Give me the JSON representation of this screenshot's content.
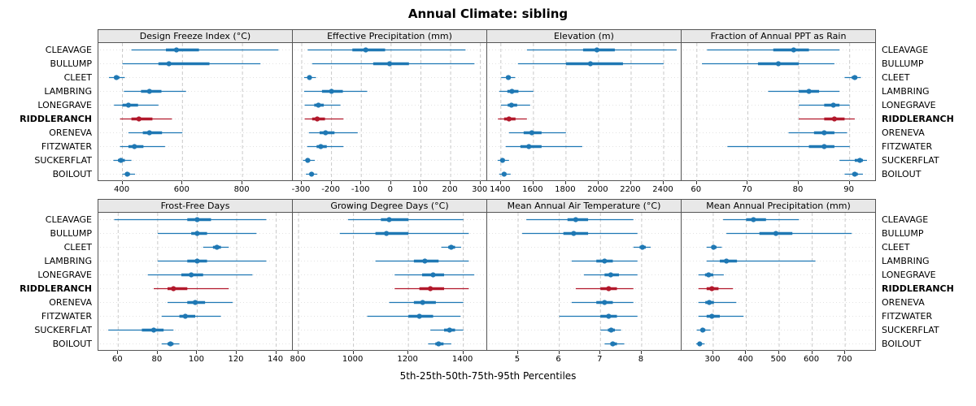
{
  "title": "Annual Climate: sibling",
  "caption": "5th-25th-50th-75th-95th Percentiles",
  "highlight_site": "RIDDLERANCH",
  "sites": [
    "CLEAVAGE",
    "BULLUMP",
    "CLEET",
    "LAMBRING",
    "LONEGRAVE",
    "RIDDLERANCH",
    "ORENEVA",
    "FITZWATER",
    "SUCKERFLAT",
    "BOILOUT"
  ],
  "colors": {
    "series": "#1f78b4",
    "highlight": "#b2182b",
    "header_bg": "#e8e8e8",
    "border": "#555555",
    "grid_v": "#c9c9c9",
    "grid_h": "#e3e3e3"
  },
  "chart_data": {
    "type": "scatter",
    "subtype": "percentile-dotplot",
    "percentiles": [
      5,
      25,
      50,
      75,
      95
    ],
    "rows_top_to_bottom": [
      "CLEAVAGE",
      "BULLUMP",
      "CLEET",
      "LAMBRING",
      "LONEGRAVE",
      "RIDDLERANCH",
      "ORENEVA",
      "FITZWATER",
      "SUCKERFLAT",
      "BOILOUT"
    ],
    "legend_position": "none",
    "grid": "dashed-vertical-at-ticks",
    "panels": [
      {
        "title": "Design Freeze Index (°C)",
        "ticks": [
          400,
          600,
          800
        ],
        "xlim": [
          320,
          965
        ],
        "values": {
          "CLEAVAGE": [
            430,
            545,
            580,
            655,
            920
          ],
          "BULLUMP": [
            400,
            520,
            555,
            690,
            860
          ],
          "CLEET": [
            355,
            372,
            380,
            390,
            408
          ],
          "LAMBRING": [
            405,
            462,
            490,
            530,
            612
          ],
          "LONEGRAVE": [
            372,
            400,
            420,
            452,
            520
          ],
          "RIDDLERANCH": [
            392,
            430,
            455,
            500,
            565
          ],
          "ORENEVA": [
            420,
            468,
            490,
            532,
            600
          ],
          "FITZWATER": [
            392,
            420,
            440,
            470,
            542
          ],
          "SUCKERFLAT": [
            370,
            385,
            395,
            408,
            430
          ],
          "BOILOUT": [
            400,
            410,
            416,
            425,
            442
          ]
        }
      },
      {
        "title": "Effective Precipitation (mm)",
        "ticks": [
          -300,
          -200,
          -100,
          0,
          100,
          200,
          300
        ],
        "xlim": [
          -330,
          320
        ],
        "values": {
          "CLEAVAGE": [
            -280,
            -130,
            -85,
            -20,
            250
          ],
          "BULLUMP": [
            -265,
            -60,
            -5,
            60,
            280
          ],
          "CLEET": [
            -292,
            -280,
            -274,
            -267,
            -252
          ],
          "LAMBRING": [
            -292,
            -232,
            -200,
            -162,
            -80
          ],
          "LONEGRAVE": [
            -290,
            -258,
            -244,
            -226,
            -170
          ],
          "RIDDLERANCH": [
            -290,
            -265,
            -248,
            -222,
            -160
          ],
          "ORENEVA": [
            -276,
            -240,
            -220,
            -190,
            -112
          ],
          "FITZWATER": [
            -282,
            -250,
            -236,
            -216,
            -160
          ],
          "SUCKERFLAT": [
            -296,
            -286,
            -280,
            -272,
            -256
          ],
          "BOILOUT": [
            -286,
            -273,
            -267,
            -260,
            -248
          ]
        }
      },
      {
        "title": "Elevation (m)",
        "ticks": [
          1400,
          1600,
          1800,
          2000,
          2200,
          2400
        ],
        "xlim": [
          1316,
          2505
        ],
        "values": {
          "CLEAVAGE": [
            1560,
            1905,
            1990,
            2100,
            2480
          ],
          "BULLUMP": [
            1505,
            1800,
            1950,
            2150,
            2400
          ],
          "CLEET": [
            1402,
            1432,
            1446,
            1460,
            1488
          ],
          "LAMBRING": [
            1390,
            1440,
            1468,
            1508,
            1600
          ],
          "LONEGRAVE": [
            1400,
            1442,
            1465,
            1500,
            1580
          ],
          "RIDDLERANCH": [
            1382,
            1420,
            1450,
            1490,
            1560
          ],
          "ORENEVA": [
            1450,
            1540,
            1590,
            1650,
            1800
          ],
          "FITZWATER": [
            1430,
            1520,
            1572,
            1650,
            1900
          ],
          "SUCKERFLAT": [
            1380,
            1398,
            1410,
            1424,
            1450
          ],
          "BOILOUT": [
            1390,
            1408,
            1420,
            1434,
            1460
          ]
        }
      },
      {
        "title": "Fraction of Annual PPT as Rain",
        "ticks": [
          60,
          70,
          80,
          90
        ],
        "xlim": [
          57,
          95
        ],
        "values": {
          "CLEAVAGE": [
            62,
            75,
            79,
            82,
            88
          ],
          "BULLUMP": [
            61,
            72,
            76,
            80,
            87
          ],
          "CLEET": [
            89,
            90.4,
            91,
            91.5,
            92.2
          ],
          "LAMBRING": [
            74,
            80,
            82,
            84,
            88
          ],
          "LONEGRAVE": [
            80,
            85,
            86.8,
            88,
            90
          ],
          "RIDDLERANCH": [
            80,
            85,
            87,
            89,
            91
          ],
          "ORENEVA": [
            78,
            83,
            85,
            87,
            89.5
          ],
          "FITZWATER": [
            66,
            82,
            85,
            87,
            90
          ],
          "SUCKERFLAT": [
            88,
            91,
            92,
            92.6,
            93.4
          ],
          "BOILOUT": [
            89,
            90.5,
            91,
            91.6,
            92.6
          ]
        }
      },
      {
        "title": "Frost-Free Days",
        "ticks": [
          60,
          80,
          100,
          120,
          140
        ],
        "xlim": [
          50,
          148
        ],
        "values": {
          "CLEAVAGE": [
            58,
            95,
            100,
            107,
            135
          ],
          "BULLUMP": [
            80,
            97,
            100,
            105,
            130
          ],
          "CLEET": [
            103,
            108,
            110,
            112,
            116
          ],
          "LAMBRING": [
            80,
            95,
            100,
            105,
            135
          ],
          "LONEGRAVE": [
            75,
            92,
            97,
            103,
            128
          ],
          "RIDDLERANCH": [
            78,
            85,
            88,
            95,
            116
          ],
          "ORENEVA": [
            85,
            95,
            99,
            104,
            118
          ],
          "FITZWATER": [
            82,
            91,
            94,
            99,
            112
          ],
          "SUCKERFLAT": [
            55,
            72,
            78,
            83,
            88
          ],
          "BOILOUT": [
            82,
            85,
            86.5,
            88,
            91
          ]
        }
      },
      {
        "title": "Growing Degree Days (°C)",
        "ticks": [
          800,
          1000,
          1200,
          1400
        ],
        "xlim": [
          779,
          1484
        ],
        "values": {
          "CLEAVAGE": [
            980,
            1100,
            1130,
            1200,
            1400
          ],
          "BULLUMP": [
            950,
            1080,
            1120,
            1200,
            1420
          ],
          "CLEET": [
            1320,
            1345,
            1356,
            1370,
            1392
          ],
          "LAMBRING": [
            1080,
            1220,
            1260,
            1310,
            1420
          ],
          "LONEGRAVE": [
            1150,
            1250,
            1290,
            1330,
            1440
          ],
          "RIDDLERANCH": [
            1150,
            1240,
            1280,
            1330,
            1420
          ],
          "ORENEVA": [
            1130,
            1220,
            1252,
            1300,
            1400
          ],
          "FITZWATER": [
            1050,
            1200,
            1240,
            1290,
            1390
          ],
          "SUCKERFLAT": [
            1280,
            1330,
            1350,
            1370,
            1400
          ],
          "BOILOUT": [
            1272,
            1298,
            1310,
            1328,
            1356
          ]
        }
      },
      {
        "title": "Mean Annual Air Temperature (°C)",
        "ticks": [
          5,
          6,
          7,
          8
        ],
        "xlim": [
          4.25,
          8.95
        ],
        "values": {
          "CLEAVAGE": [
            5.2,
            6.2,
            6.4,
            6.7,
            7.8
          ],
          "BULLUMP": [
            5.1,
            6.1,
            6.35,
            6.7,
            7.9
          ],
          "CLEET": [
            7.8,
            7.95,
            8.02,
            8.1,
            8.22
          ],
          "LAMBRING": [
            6.3,
            6.9,
            7.1,
            7.3,
            7.9
          ],
          "LONEGRAVE": [
            6.6,
            7.1,
            7.25,
            7.45,
            7.9
          ],
          "RIDDLERANCH": [
            6.4,
            7.0,
            7.2,
            7.4,
            7.8
          ],
          "ORENEVA": [
            6.3,
            6.9,
            7.1,
            7.3,
            7.8
          ],
          "FITZWATER": [
            6.0,
            7.0,
            7.2,
            7.4,
            7.9
          ],
          "SUCKERFLAT": [
            7.0,
            7.18,
            7.26,
            7.35,
            7.5
          ],
          "BOILOUT": [
            7.1,
            7.24,
            7.3,
            7.4,
            7.58
          ]
        }
      },
      {
        "title": "Mean Annual Precipitation (mm)",
        "ticks": [
          300,
          400,
          500,
          600,
          700
        ],
        "xlim": [
          204,
          791
        ],
        "values": {
          "CLEAVAGE": [
            330,
            400,
            422,
            460,
            560
          ],
          "BULLUMP": [
            340,
            440,
            490,
            540,
            720
          ],
          "CLEET": [
            280,
            294,
            301,
            310,
            326
          ],
          "LAMBRING": [
            280,
            320,
            340,
            372,
            610
          ],
          "LONEGRAVE": [
            255,
            275,
            286,
            300,
            332
          ],
          "RIDDLERANCH": [
            255,
            280,
            296,
            316,
            360
          ],
          "ORENEVA": [
            255,
            276,
            288,
            302,
            370
          ],
          "FITZWATER": [
            255,
            280,
            296,
            320,
            392
          ],
          "SUCKERFLAT": [
            250,
            262,
            268,
            276,
            292
          ],
          "BOILOUT": [
            248,
            255,
            259,
            264,
            274
          ]
        }
      }
    ]
  }
}
